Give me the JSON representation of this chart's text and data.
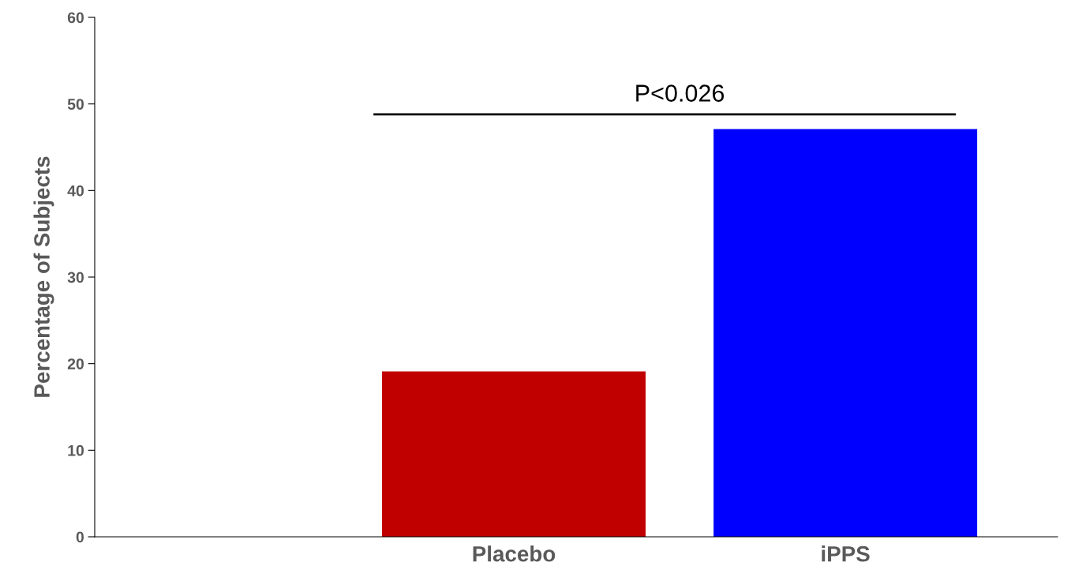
{
  "chart_data": {
    "type": "bar",
    "ylabel": "Percentage of Subjects",
    "categories": [
      null,
      "Placebo",
      "iPPS"
    ],
    "values": [
      null,
      19,
      47
    ],
    "colors": [
      "#c00000",
      "#c00000",
      "#0000ff"
    ],
    "ylim": [
      0,
      60
    ],
    "yticks": [
      0,
      10,
      20,
      30,
      40,
      50,
      60
    ],
    "grid": false,
    "legend": false,
    "annotations": [
      "P<0.026"
    ]
  }
}
